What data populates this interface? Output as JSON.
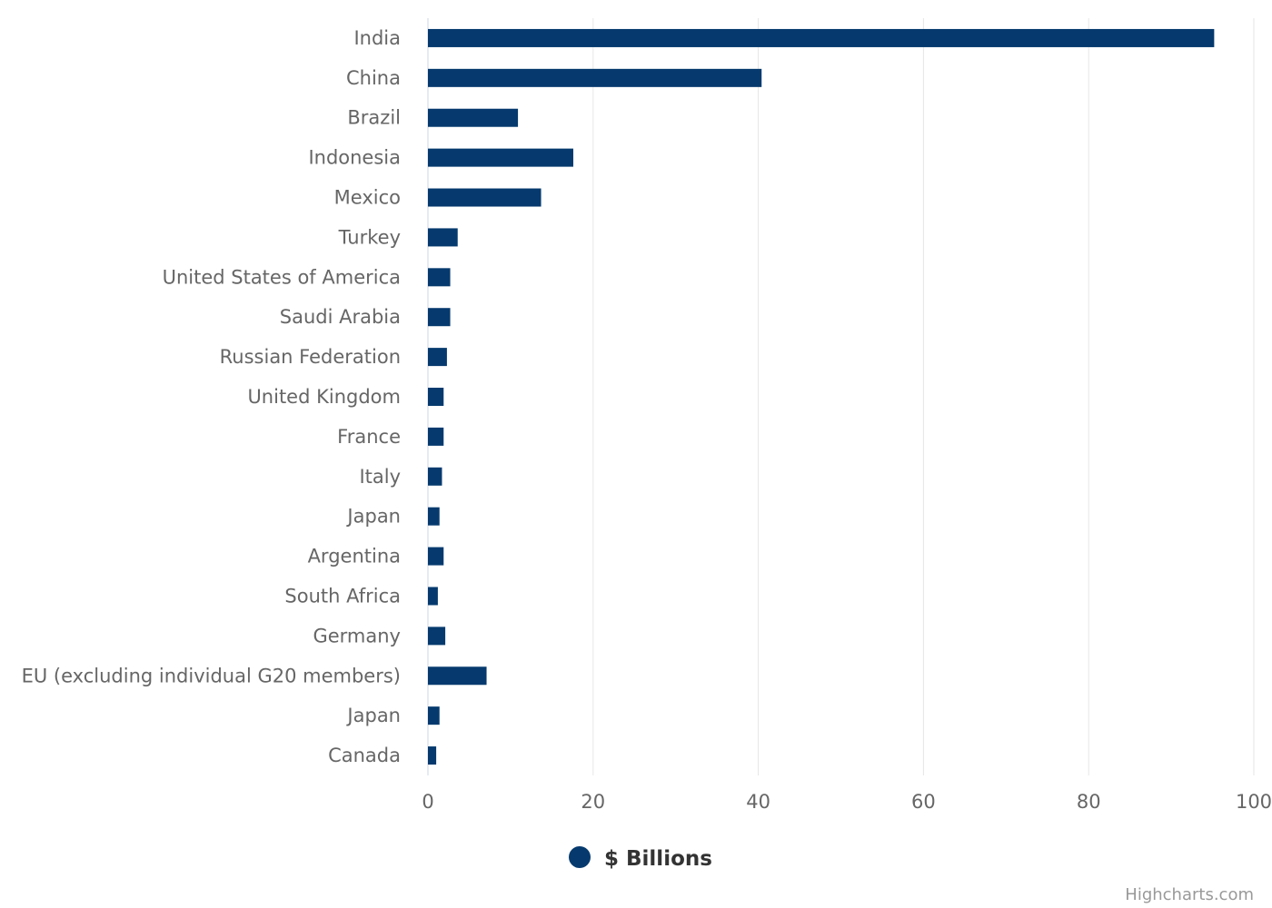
{
  "chart_data": {
    "type": "bar",
    "orientation": "horizontal",
    "categories": [
      "India",
      "China",
      "Brazil",
      "Indonesia",
      "Mexico",
      "Turkey",
      "United States of America",
      "Saudi Arabia",
      "Russian Federation",
      "United Kingdom",
      "France",
      "Italy",
      "Japan",
      "Argentina",
      "South Africa",
      "Germany",
      "EU (excluding individual G20 members)",
      "Japan",
      "Canada"
    ],
    "series": [
      {
        "name": "$ Billions",
        "color": "#063a6e",
        "values": [
          95.2,
          40.4,
          10.9,
          17.6,
          13.7,
          3.6,
          2.7,
          2.7,
          2.3,
          1.9,
          1.9,
          1.7,
          1.4,
          1.9,
          1.2,
          2.1,
          7.1,
          1.4,
          1.0
        ]
      }
    ],
    "xlim": [
      0,
      100
    ],
    "x_ticks": [
      0,
      20,
      40,
      60,
      80,
      100
    ],
    "grid": true,
    "legend": "bottom-center",
    "credits": "Highcharts.com",
    "colors": {
      "bar": "#063a6e",
      "grid": "#e6e6e6",
      "axis_line": "#ccd6eb",
      "label": "#666666"
    }
  }
}
